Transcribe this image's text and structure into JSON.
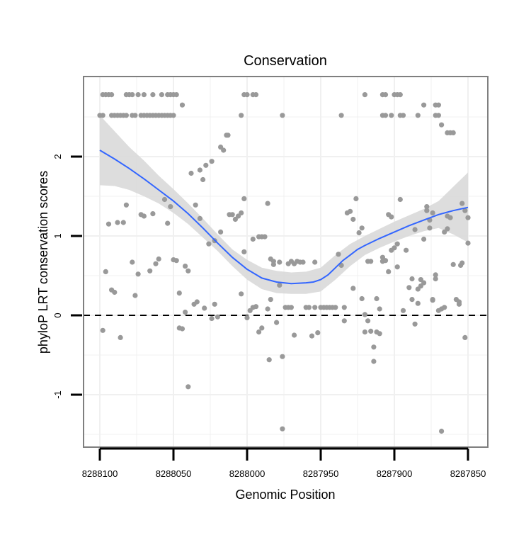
{
  "chart_data": {
    "type": "scatter",
    "title": "Conservation",
    "xlabel": "Genomic Position",
    "ylabel": "phyloP LRT conservation scores",
    "x_reversed": true,
    "xlim": [
      8288100,
      8287850
    ],
    "ylim": [
      -1.6,
      2.95
    ],
    "x_ticks": [
      8288100,
      8288050,
      8288000,
      8287950,
      8287900,
      8287850
    ],
    "x_tick_labels": [
      "8288100",
      "8288050",
      "8288000",
      "8287950",
      "8287900",
      "8287850"
    ],
    "y_ticks": [
      -1,
      0,
      1,
      2
    ],
    "y_tick_labels": [
      "-1",
      "0",
      "1",
      "2"
    ],
    "grid": true,
    "legend": "none",
    "reference_line": {
      "y": 0,
      "style": "dashed"
    },
    "colors": {
      "points": "#999999",
      "smooth": "#3366ff",
      "ribbon": "#d9d9d9",
      "border": "#7f7f7f",
      "grid": "#f0f0f0"
    },
    "points": [
      [
        8288098,
        2.78
      ],
      [
        8288096,
        2.78
      ],
      [
        8288094,
        2.78
      ],
      [
        8288092,
        2.78
      ],
      [
        8288082,
        2.78
      ],
      [
        8288080,
        2.78
      ],
      [
        8288078,
        2.78
      ],
      [
        8288074,
        2.78
      ],
      [
        8288070,
        2.78
      ],
      [
        8288064,
        2.78
      ],
      [
        8288058,
        2.78
      ],
      [
        8288054,
        2.78
      ],
      [
        8288052,
        2.78
      ],
      [
        8288050,
        2.78
      ],
      [
        8288048,
        2.78
      ],
      [
        8288100,
        2.52
      ],
      [
        8288098,
        2.52
      ],
      [
        8288092,
        2.52
      ],
      [
        8288090,
        2.52
      ],
      [
        8288088,
        2.52
      ],
      [
        8288086,
        2.52
      ],
      [
        8288084,
        2.52
      ],
      [
        8288082,
        2.52
      ],
      [
        8288078,
        2.52
      ],
      [
        8288076,
        2.52
      ],
      [
        8288072,
        2.52
      ],
      [
        8288070,
        2.52
      ],
      [
        8288068,
        2.52
      ],
      [
        8288066,
        2.52
      ],
      [
        8288064,
        2.52
      ],
      [
        8288062,
        2.52
      ],
      [
        8288060,
        2.52
      ],
      [
        8288058,
        2.52
      ],
      [
        8288056,
        2.52
      ],
      [
        8288054,
        2.52
      ],
      [
        8288052,
        2.52
      ],
      [
        8288050,
        2.52
      ],
      [
        8288044,
        2.65
      ],
      [
        8288002,
        2.78
      ],
      [
        8288000,
        2.78
      ],
      [
        8287996,
        2.78
      ],
      [
        8287994,
        2.78
      ],
      [
        8288004,
        2.52
      ],
      [
        8287976,
        2.52
      ],
      [
        8287936,
        2.52
      ],
      [
        8287920,
        2.78
      ],
      [
        8287908,
        2.78
      ],
      [
        8287906,
        2.78
      ],
      [
        8287900,
        2.78
      ],
      [
        8287898,
        2.78
      ],
      [
        8287896,
        2.78
      ],
      [
        8287908,
        2.52
      ],
      [
        8287906,
        2.52
      ],
      [
        8287902,
        2.52
      ],
      [
        8287896,
        2.52
      ],
      [
        8287894,
        2.52
      ],
      [
        8287884,
        2.52
      ],
      [
        8287880,
        2.65
      ],
      [
        8287872,
        2.65
      ],
      [
        8287870,
        2.65
      ],
      [
        8287872,
        2.52
      ],
      [
        8287870,
        2.52
      ],
      [
        8287868,
        2.4
      ],
      [
        8287864,
        2.3
      ],
      [
        8287862,
        2.3
      ],
      [
        8287860,
        2.3
      ],
      [
        8288098,
        -0.19
      ],
      [
        8288096,
        0.55
      ],
      [
        8288094,
        1.15
      ],
      [
        8288092,
        0.32
      ],
      [
        8288090,
        0.29
      ],
      [
        8288088,
        1.17
      ],
      [
        8288086,
        -0.28
      ],
      [
        8288084,
        1.17
      ],
      [
        8288082,
        1.39
      ],
      [
        8288078,
        0.67
      ],
      [
        8288076,
        0.25
      ],
      [
        8288074,
        0.52
      ],
      [
        8288072,
        1.27
      ],
      [
        8288070,
        1.25
      ],
      [
        8288066,
        0.56
      ],
      [
        8288064,
        1.28
      ],
      [
        8288062,
        0.65
      ],
      [
        8288060,
        0.71
      ],
      [
        8288056,
        1.46
      ],
      [
        8288054,
        1.16
      ],
      [
        8288052,
        1.37
      ],
      [
        8288050,
        0.7
      ],
      [
        8288048,
        0.69
      ],
      [
        8288046,
        0.28
      ],
      [
        8288046,
        -0.16
      ],
      [
        8288044,
        -0.17
      ],
      [
        8288042,
        0.04
      ],
      [
        8288042,
        0.62
      ],
      [
        8288040,
        0.56
      ],
      [
        8288040,
        -0.9
      ],
      [
        8288038,
        1.79
      ],
      [
        8288036,
        0.14
      ],
      [
        8288035,
        1.39
      ],
      [
        8288034,
        0.17
      ],
      [
        8288032,
        1.22
      ],
      [
        8288032,
        1.83
      ],
      [
        8288030,
        1.71
      ],
      [
        8288029,
        0.09
      ],
      [
        8288028,
        1.89
      ],
      [
        8288026,
        0.9
      ],
      [
        8288024,
        -0.04
      ],
      [
        8288024,
        1.94
      ],
      [
        8288022,
        0.14
      ],
      [
        8288022,
        0.94
      ],
      [
        8288020,
        -0.02
      ],
      [
        8288018,
        1.05
      ],
      [
        8288018,
        2.12
      ],
      [
        8288016,
        2.08
      ],
      [
        8288014,
        2.27
      ],
      [
        8288013,
        2.27
      ],
      [
        8288012,
        1.27
      ],
      [
        8288010,
        1.27
      ],
      [
        8288008,
        1.21
      ],
      [
        8288006,
        1.25
      ],
      [
        8288004,
        1.29
      ],
      [
        8288004,
        0.27
      ],
      [
        8288002,
        0.8
      ],
      [
        8288002,
        1.47
      ],
      [
        8288000,
        -0.03
      ],
      [
        8287998,
        0.06
      ],
      [
        8287996,
        0.96
      ],
      [
        8287996,
        0.1
      ],
      [
        8287994,
        0.11
      ],
      [
        8287992,
        -0.21
      ],
      [
        8287992,
        0.99
      ],
      [
        8287990,
        -0.16
      ],
      [
        8287990,
        0.99
      ],
      [
        8287988,
        0.99
      ],
      [
        8287986,
        0.08
      ],
      [
        8287986,
        1.41
      ],
      [
        8287985,
        -0.56
      ],
      [
        8287984,
        0.2
      ],
      [
        8287984,
        0.71
      ],
      [
        8287982,
        0.64
      ],
      [
        8287982,
        0.68
      ],
      [
        8287980,
        -0.09
      ],
      [
        8287978,
        0.38
      ],
      [
        8287978,
        0.67
      ],
      [
        8287976,
        -1.43
      ],
      [
        8287976,
        -0.52
      ],
      [
        8287974,
        0.1
      ],
      [
        8287972,
        0.65
      ],
      [
        8287972,
        0.1
      ],
      [
        8287970,
        0.1
      ],
      [
        8287970,
        0.68
      ],
      [
        8287968,
        -0.25
      ],
      [
        8287968,
        0.65
      ],
      [
        8287966,
        0.68
      ],
      [
        8287964,
        0.67
      ],
      [
        8287962,
        0.67
      ],
      [
        8287960,
        0.1
      ],
      [
        8287958,
        0.1
      ],
      [
        8287956,
        -0.26
      ],
      [
        8287954,
        0.67
      ],
      [
        8287954,
        0.1
      ],
      [
        8287952,
        -0.22
      ],
      [
        8287950,
        0.1
      ],
      [
        8287948,
        0.1
      ],
      [
        8287946,
        0.1
      ],
      [
        8287944,
        0.1
      ],
      [
        8287942,
        0.1
      ],
      [
        8287940,
        0.1
      ],
      [
        8287938,
        0.77
      ],
      [
        8287936,
        0.63
      ],
      [
        8287934,
        0.1
      ],
      [
        8287934,
        -0.07
      ],
      [
        8287932,
        1.29
      ],
      [
        8287930,
        1.31
      ],
      [
        8287928,
        0.34
      ],
      [
        8287928,
        1.21
      ],
      [
        8287926,
        1.47
      ],
      [
        8287924,
        1.04
      ],
      [
        8287922,
        0.21
      ],
      [
        8287922,
        1.1
      ],
      [
        8287920,
        0.01
      ],
      [
        8287920,
        -0.21
      ],
      [
        8287918,
        -0.07
      ],
      [
        8287918,
        0.68
      ],
      [
        8287916,
        -0.2
      ],
      [
        8287916,
        0.68
      ],
      [
        8287914,
        -0.4
      ],
      [
        8287914,
        -0.58
      ],
      [
        8287912,
        -0.21
      ],
      [
        8287912,
        0.21
      ],
      [
        8287910,
        0.08
      ],
      [
        8287910,
        -0.23
      ],
      [
        8287908,
        0.73
      ],
      [
        8287908,
        0.68
      ],
      [
        8287906,
        0.69
      ],
      [
        8287904,
        1.27
      ],
      [
        8287904,
        0.55
      ],
      [
        8287902,
        1.24
      ],
      [
        8287902,
        0.82
      ],
      [
        8287900,
        0.85
      ],
      [
        8287898,
        0.61
      ],
      [
        8287898,
        0.9
      ],
      [
        8287896,
        1.46
      ],
      [
        8287894,
        0.06
      ],
      [
        8287892,
        0.82
      ],
      [
        8287890,
        0.35
      ],
      [
        8287888,
        0.2
      ],
      [
        8287888,
        0.46
      ],
      [
        8287886,
        1.08
      ],
      [
        8287886,
        -0.11
      ],
      [
        8287884,
        0.15
      ],
      [
        8287884,
        0.33
      ],
      [
        8287882,
        0.45
      ],
      [
        8287882,
        0.37
      ],
      [
        8287880,
        0.41
      ],
      [
        8287880,
        0.96
      ],
      [
        8287878,
        1.32
      ],
      [
        8287878,
        1.37
      ],
      [
        8287876,
        1.2
      ],
      [
        8287876,
        1.1
      ],
      [
        8287874,
        0.19
      ],
      [
        8287874,
        0.2
      ],
      [
        8287874,
        1.29
      ],
      [
        8287872,
        0.51
      ],
      [
        8287872,
        0.46
      ],
      [
        8287870,
        0.06
      ],
      [
        8287868,
        -1.46
      ],
      [
        8287868,
        0.08
      ],
      [
        8287866,
        0.1
      ],
      [
        8287866,
        1.05
      ],
      [
        8287864,
        1.09
      ],
      [
        8287864,
        1.25
      ],
      [
        8287862,
        1.23
      ],
      [
        8287860,
        0.64
      ],
      [
        8287858,
        0.2
      ],
      [
        8287856,
        0.17
      ],
      [
        8287856,
        0.14
      ],
      [
        8287855,
        0.63
      ],
      [
        8287854,
        1.41
      ],
      [
        8287854,
        0.66
      ],
      [
        8287852,
        1.32
      ],
      [
        8287852,
        -0.28
      ],
      [
        8287850,
        0.91
      ],
      [
        8287850,
        1.23
      ]
    ],
    "smooth_fit": [
      [
        8288100,
        2.08
      ],
      [
        8288090,
        1.97
      ],
      [
        8288080,
        1.85
      ],
      [
        8288070,
        1.72
      ],
      [
        8288060,
        1.58
      ],
      [
        8288050,
        1.44
      ],
      [
        8288040,
        1.28
      ],
      [
        8288030,
        1.1
      ],
      [
        8288020,
        0.91
      ],
      [
        8288010,
        0.73
      ],
      [
        8288000,
        0.58
      ],
      [
        8287990,
        0.47
      ],
      [
        8287980,
        0.42
      ],
      [
        8287970,
        0.4
      ],
      [
        8287960,
        0.41
      ],
      [
        8287955,
        0.42
      ],
      [
        8287950,
        0.45
      ],
      [
        8287945,
        0.51
      ],
      [
        8287940,
        0.6
      ],
      [
        8287935,
        0.69
      ],
      [
        8287930,
        0.76
      ],
      [
        8287925,
        0.83
      ],
      [
        8287920,
        0.88
      ],
      [
        8287910,
        0.97
      ],
      [
        8287900,
        1.05
      ],
      [
        8287890,
        1.13
      ],
      [
        8287880,
        1.2
      ],
      [
        8287870,
        1.27
      ],
      [
        8287860,
        1.32
      ],
      [
        8287850,
        1.36
      ]
    ],
    "ribbon_lower": [
      [
        8288100,
        1.64
      ],
      [
        8288090,
        1.63
      ],
      [
        8288080,
        1.58
      ],
      [
        8288070,
        1.5
      ],
      [
        8288060,
        1.41
      ],
      [
        8288050,
        1.29
      ],
      [
        8288040,
        1.15
      ],
      [
        8288030,
        0.98
      ],
      [
        8288020,
        0.81
      ],
      [
        8288010,
        0.62
      ],
      [
        8288000,
        0.45
      ],
      [
        8287990,
        0.33
      ],
      [
        8287980,
        0.28
      ],
      [
        8287970,
        0.27
      ],
      [
        8287960,
        0.27
      ],
      [
        8287950,
        0.3
      ],
      [
        8287940,
        0.45
      ],
      [
        8287930,
        0.62
      ],
      [
        8287920,
        0.76
      ],
      [
        8287910,
        0.85
      ],
      [
        8287900,
        0.93
      ],
      [
        8287890,
        1.0
      ],
      [
        8287880,
        1.06
      ],
      [
        8287870,
        1.1
      ],
      [
        8287860,
        1.02
      ],
      [
        8287850,
        0.92
      ]
    ],
    "ribbon_upper": [
      [
        8288100,
        2.52
      ],
      [
        8288090,
        2.32
      ],
      [
        8288080,
        2.12
      ],
      [
        8288070,
        1.95
      ],
      [
        8288060,
        1.76
      ],
      [
        8288050,
        1.59
      ],
      [
        8288040,
        1.41
      ],
      [
        8288030,
        1.22
      ],
      [
        8288020,
        1.02
      ],
      [
        8288010,
        0.83
      ],
      [
        8288000,
        0.7
      ],
      [
        8287990,
        0.6
      ],
      [
        8287980,
        0.56
      ],
      [
        8287970,
        0.54
      ],
      [
        8287960,
        0.55
      ],
      [
        8287950,
        0.6
      ],
      [
        8287940,
        0.76
      ],
      [
        8287930,
        0.9
      ],
      [
        8287920,
        1.0
      ],
      [
        8287910,
        1.09
      ],
      [
        8287900,
        1.18
      ],
      [
        8287890,
        1.26
      ],
      [
        8287880,
        1.34
      ],
      [
        8287870,
        1.44
      ],
      [
        8287860,
        1.62
      ],
      [
        8287850,
        1.8
      ]
    ]
  }
}
